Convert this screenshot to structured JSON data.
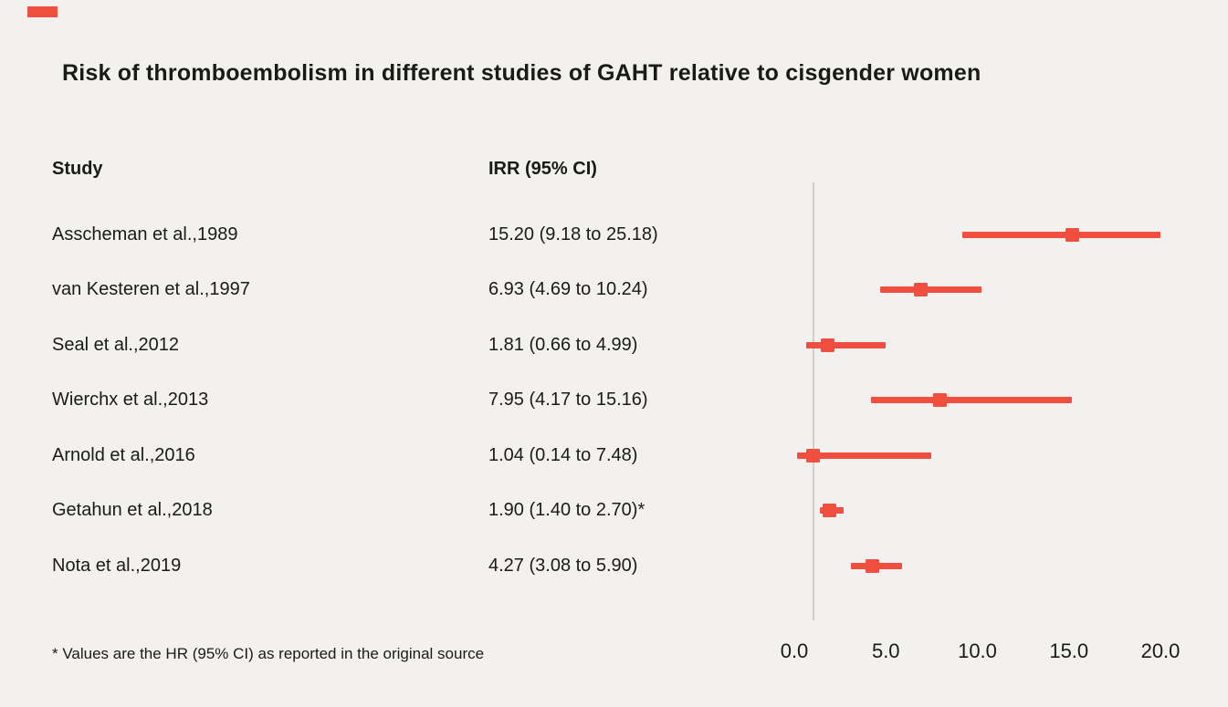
{
  "title": "Risk of thromboembolism in different studies of GAHT relative to cisgender women",
  "columns": {
    "study": "Study",
    "irr": "IRR (95% CI)"
  },
  "footnote": "* Values are the HR (95% CI) as reported in the original source",
  "colors": {
    "accent": "#f04e3e",
    "background": "#f2f1ef",
    "reference_line": "#cfcecb"
  },
  "chart_data": {
    "type": "forest",
    "title": "Risk of thromboembolism in different studies of GAHT relative to cisgender women",
    "xlabel": "",
    "ylabel": "",
    "xlim": [
      0,
      20
    ],
    "x_ticks": [
      0,
      5,
      10,
      15,
      20
    ],
    "tick_labels": [
      "0.0",
      "5.0",
      "10.0",
      "15.0",
      "20.0"
    ],
    "reference_line": 1.0,
    "grid": false,
    "studies": [
      {
        "label": "Asscheman et al.,1989",
        "value_text": "15.20 (9.18 to 25.18)",
        "est": 15.2,
        "lo": 9.18,
        "hi": 25.18
      },
      {
        "label": "van Kesteren et al.,1997",
        "value_text": "6.93 (4.69 to 10.24)",
        "est": 6.93,
        "lo": 4.69,
        "hi": 10.24
      },
      {
        "label": "Seal et al.,2012",
        "value_text": "1.81 (0.66 to 4.99)",
        "est": 1.81,
        "lo": 0.66,
        "hi": 4.99
      },
      {
        "label": "Wierchx et al.,2013",
        "value_text": "7.95 (4.17 to 15.16)",
        "est": 7.95,
        "lo": 4.17,
        "hi": 15.16
      },
      {
        "label": "Arnold et al.,2016",
        "value_text": "1.04 (0.14 to 7.48)",
        "est": 1.04,
        "lo": 0.14,
        "hi": 7.48
      },
      {
        "label": "Getahun et al.,2018",
        "value_text": "1.90 (1.40 to 2.70)*",
        "est": 1.9,
        "lo": 1.4,
        "hi": 2.7
      },
      {
        "label": "Nota et al.,2019",
        "value_text": "4.27 (3.08 to 5.90)",
        "est": 4.27,
        "lo": 3.08,
        "hi": 5.9
      }
    ]
  }
}
